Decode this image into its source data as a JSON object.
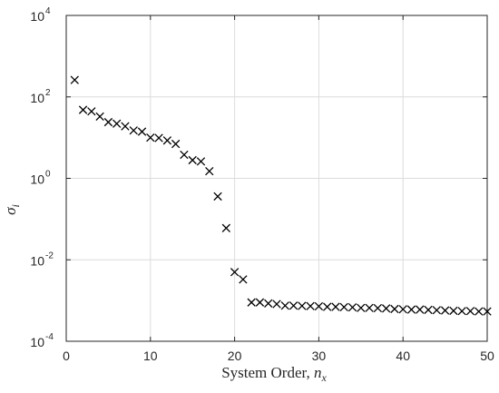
{
  "chart_data": {
    "type": "scatter",
    "title": "",
    "xlabel": "System Order, ",
    "xlabel_symbol": "n",
    "xlabel_subscript": "x",
    "ylabel_symbol": "σ",
    "ylabel_subscript": "i",
    "xlim": [
      0,
      50
    ],
    "ylim": [
      0.0001,
      10000
    ],
    "yscale": "log",
    "grid": true,
    "marker": "x",
    "marker_color": "#000000",
    "grid_color": "#dcdcdc",
    "x_ticks": [
      0,
      10,
      20,
      30,
      40,
      50
    ],
    "x_tick_labels": [
      "0",
      "10",
      "20",
      "30",
      "40",
      "50"
    ],
    "y_ticks": [
      0.0001,
      0.01,
      1,
      100,
      10000
    ],
    "y_tick_labels": [
      {
        "base": "10",
        "exp": "-4"
      },
      {
        "base": "10",
        "exp": "-2"
      },
      {
        "base": "10",
        "exp": "0"
      },
      {
        "base": "10",
        "exp": "2"
      },
      {
        "base": "10",
        "exp": "4"
      }
    ],
    "x": [
      1,
      2,
      3,
      4,
      5,
      6,
      7,
      8,
      9,
      10,
      11,
      12,
      13,
      14,
      15,
      16,
      17,
      18,
      19,
      20,
      21,
      22,
      23,
      24,
      25,
      26,
      27,
      28,
      29,
      30,
      31,
      32,
      33,
      34,
      35,
      36,
      37,
      38,
      39,
      40,
      41,
      42,
      43,
      44,
      45,
      46,
      47,
      48,
      49,
      50
    ],
    "y": [
      260,
      48,
      44,
      33,
      24,
      22,
      19,
      15,
      14,
      10,
      9.8,
      8.5,
      7.0,
      3.8,
      2.8,
      2.6,
      1.5,
      0.36,
      0.06,
      0.005,
      0.0033,
      0.0009,
      0.0009,
      0.00085,
      0.00082,
      0.00075,
      0.00075,
      0.00074,
      0.00073,
      0.00072,
      0.0007,
      0.0007,
      0.00069,
      0.00068,
      0.00066,
      0.00066,
      0.00065,
      0.00064,
      0.00062,
      0.00061,
      0.0006,
      0.0006,
      0.00059,
      0.00058,
      0.00057,
      0.00056,
      0.00055,
      0.00055,
      0.00054,
      0.00054
    ]
  }
}
